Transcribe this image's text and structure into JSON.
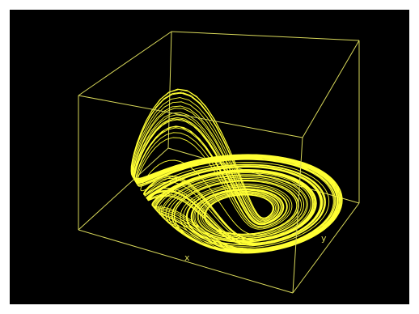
{
  "viewer": {
    "background": "#000000",
    "line_color": "#ffff33",
    "box_color": "#d8d85a"
  },
  "axes": {
    "x_label": "x",
    "y_label": "y"
  },
  "plot": {
    "type": "3d-curve-trajectory",
    "bounding_box": "wireframe",
    "grid": false
  }
}
